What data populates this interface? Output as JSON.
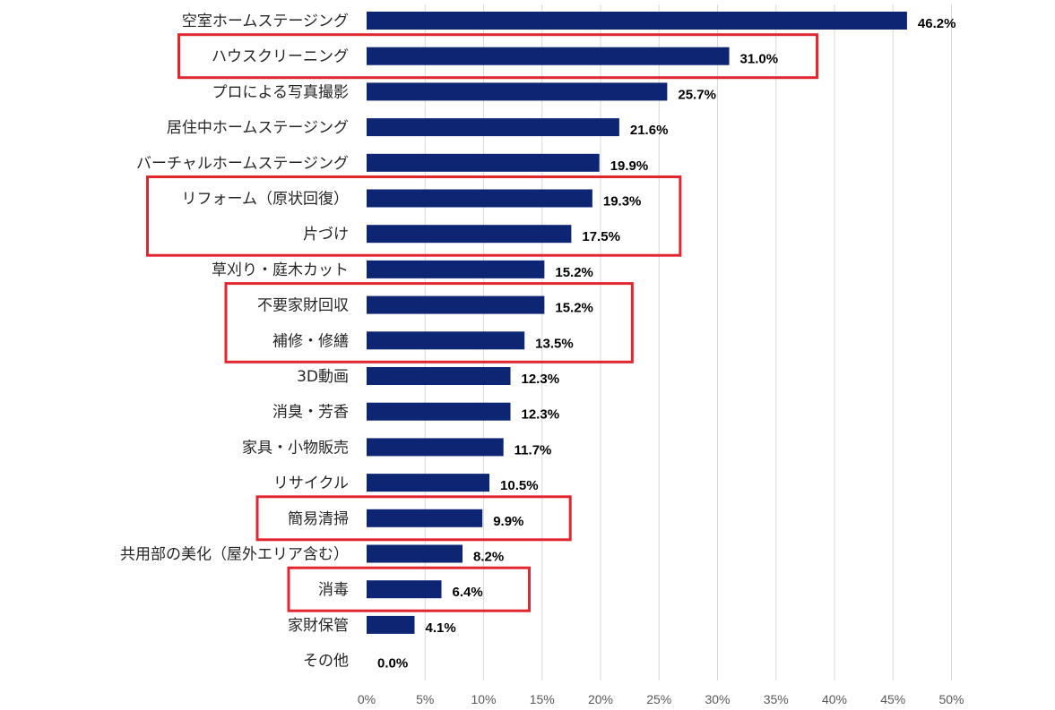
{
  "chart_data": {
    "type": "bar",
    "orientation": "horizontal",
    "title": "",
    "xlabel": "",
    "ylabel": "",
    "xlim": [
      0,
      50
    ],
    "x_ticks": [
      0,
      5,
      10,
      15,
      20,
      25,
      30,
      35,
      40,
      45,
      50
    ],
    "x_tick_labels": [
      "0%",
      "5%",
      "10%",
      "15%",
      "20%",
      "25%",
      "30%",
      "35%",
      "40%",
      "45%",
      "50%"
    ],
    "grid": "vertical",
    "bar_color": "#0e2574",
    "highlight_color": "#e0262f",
    "categories": [
      "空室ホームステージング",
      "ハウスクリーニング",
      "プロによる写真撮影",
      "居住中ホームステージング",
      "バーチャルホームステージング",
      "リフォーム（原状回復）",
      "片づけ",
      "草刈り・庭木カット",
      "不要家財回収",
      "補修・修繕",
      "3D動画",
      "消臭・芳香",
      "家具・小物販売",
      "リサイクル",
      "簡易清掃",
      "共用部の美化（屋外エリア含む）",
      "消毒",
      "家財保管",
      "その他"
    ],
    "values": [
      46.2,
      31.0,
      25.7,
      21.6,
      19.9,
      19.3,
      17.5,
      15.2,
      15.2,
      13.5,
      12.3,
      12.3,
      11.7,
      10.5,
      9.9,
      8.2,
      6.4,
      4.1,
      0.0
    ],
    "value_labels": [
      "46.2%",
      "31.0%",
      "25.7%",
      "21.6%",
      "19.9%",
      "19.3%",
      "17.5%",
      "15.2%",
      "15.2%",
      "13.5%",
      "12.3%",
      "12.3%",
      "11.7%",
      "10.5%",
      "9.9%",
      "8.2%",
      "6.4%",
      "4.1%",
      "0.0%"
    ],
    "highlight_groups": [
      {
        "categories": [
          "ハウスクリーニング"
        ]
      },
      {
        "categories": [
          "リフォーム（原状回復）",
          "片づけ"
        ]
      },
      {
        "categories": [
          "不要家財回収",
          "補修・修繕"
        ]
      },
      {
        "categories": [
          "簡易清掃"
        ]
      },
      {
        "categories": [
          "消毒"
        ]
      }
    ]
  }
}
